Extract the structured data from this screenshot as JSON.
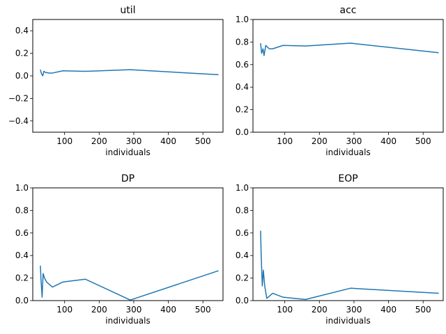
{
  "chart_data": [
    {
      "type": "line",
      "title": "util",
      "xlabel": "individuals",
      "ylabel": "",
      "xlim": [
        8,
        558
      ],
      "ylim": [
        -0.5,
        0.5
      ],
      "xticks": [
        "100",
        "200",
        "300",
        "400",
        "500"
      ],
      "xtick_values": [
        100,
        200,
        300,
        400,
        500
      ],
      "yticks": [
        "−0.4",
        "−0.2",
        "0.0",
        "0.2",
        "0.4"
      ],
      "ytick_values": [
        -0.4,
        -0.2,
        0.0,
        0.2,
        0.4
      ],
      "series": [
        {
          "color": "#1f77b4",
          "x": [
            30,
            33,
            37,
            40,
            45,
            55,
            65,
            95,
            160,
            290,
            545
          ],
          "y": [
            0.055,
            0.02,
            0.0,
            0.04,
            0.03,
            0.025,
            0.025,
            0.045,
            0.04,
            0.055,
            0.01
          ]
        }
      ]
    },
    {
      "type": "line",
      "title": "acc",
      "xlabel": "individuals",
      "ylabel": "",
      "xlim": [
        8,
        558
      ],
      "ylim": [
        0.0,
        1.0
      ],
      "xticks": [
        "100",
        "200",
        "300",
        "400",
        "500"
      ],
      "xtick_values": [
        100,
        200,
        300,
        400,
        500
      ],
      "yticks": [
        "0.0",
        "0.2",
        "0.4",
        "0.6",
        "0.8",
        "1.0"
      ],
      "ytick_values": [
        0.0,
        0.2,
        0.4,
        0.6,
        0.8,
        1.0
      ],
      "series": [
        {
          "color": "#1f77b4",
          "x": [
            30,
            33,
            37,
            40,
            45,
            55,
            65,
            95,
            160,
            290,
            545
          ],
          "y": [
            0.79,
            0.7,
            0.74,
            0.68,
            0.77,
            0.74,
            0.74,
            0.77,
            0.765,
            0.79,
            0.705
          ]
        }
      ]
    },
    {
      "type": "line",
      "title": "DP",
      "xlabel": "individuals",
      "ylabel": "",
      "xlim": [
        8,
        558
      ],
      "ylim": [
        0.0,
        1.0
      ],
      "xticks": [
        "100",
        "200",
        "300",
        "400",
        "500"
      ],
      "xtick_values": [
        100,
        200,
        300,
        400,
        500
      ],
      "yticks": [
        "0.0",
        "0.2",
        "0.4",
        "0.6",
        "0.8",
        "1.0"
      ],
      "ytick_values": [
        0.0,
        0.2,
        0.4,
        0.6,
        0.8,
        1.0
      ],
      "series": [
        {
          "color": "#1f77b4",
          "x": [
            30,
            32,
            35,
            38,
            42,
            48,
            65,
            95,
            160,
            290,
            545
          ],
          "y": [
            0.31,
            0.18,
            0.03,
            0.24,
            0.2,
            0.165,
            0.12,
            0.165,
            0.19,
            0.005,
            0.265
          ]
        }
      ]
    },
    {
      "type": "line",
      "title": "EOP",
      "xlabel": "individuals",
      "ylabel": "",
      "xlim": [
        8,
        558
      ],
      "ylim": [
        0.0,
        1.0
      ],
      "xticks": [
        "100",
        "200",
        "300",
        "400",
        "500"
      ],
      "xtick_values": [
        100,
        200,
        300,
        400,
        500
      ],
      "yticks": [
        "0.0",
        "0.2",
        "0.4",
        "0.6",
        "0.8",
        "1.0"
      ],
      "ytick_values": [
        0.0,
        0.2,
        0.4,
        0.6,
        0.8,
        1.0
      ],
      "series": [
        {
          "color": "#1f77b4",
          "x": [
            30,
            32,
            35,
            38,
            42,
            48,
            65,
            95,
            160,
            290,
            545
          ],
          "y": [
            0.62,
            0.38,
            0.13,
            0.27,
            0.13,
            0.02,
            0.065,
            0.03,
            0.01,
            0.11,
            0.065
          ]
        }
      ]
    }
  ]
}
